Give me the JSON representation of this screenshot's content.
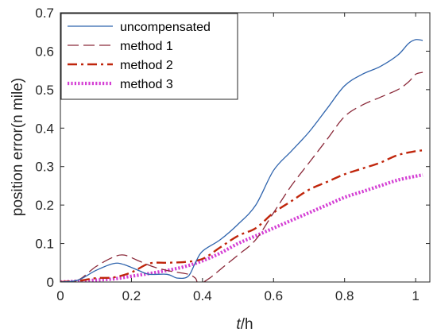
{
  "chart_data": {
    "type": "line",
    "xlabel_italic": "t",
    "xlabel_rest": "/h",
    "ylabel": "position error(n mile)",
    "xlim": [
      0,
      1.04
    ],
    "ylim": [
      0,
      0.7
    ],
    "xticks": [
      0,
      0.2,
      0.4,
      0.6,
      0.8,
      1
    ],
    "xtick_labels": [
      "0",
      "0.2",
      "0.4",
      "0.6",
      "0.8",
      "1"
    ],
    "yticks": [
      0,
      0.1,
      0.2,
      0.3,
      0.4,
      0.5,
      0.6,
      0.7
    ],
    "ytick_labels": [
      "0",
      "0.1",
      "0.2",
      "0.3",
      "0.4",
      "0.5",
      "0.6",
      "0.7"
    ],
    "grid": false,
    "legend_position": "top-left",
    "series": [
      {
        "name": "uncompensated",
        "color": "#2f64ad",
        "style": "solid",
        "x": [
          0,
          0.05,
          0.1,
          0.15,
          0.18,
          0.22,
          0.25,
          0.3,
          0.33,
          0.36,
          0.38,
          0.4,
          0.45,
          0.5,
          0.55,
          0.6,
          0.65,
          0.7,
          0.75,
          0.8,
          0.85,
          0.9,
          0.95,
          0.98,
          1.0,
          1.02
        ],
        "y": [
          0,
          0.005,
          0.03,
          0.048,
          0.045,
          0.03,
          0.02,
          0.02,
          0.01,
          0.015,
          0.05,
          0.08,
          0.11,
          0.15,
          0.2,
          0.29,
          0.34,
          0.39,
          0.45,
          0.51,
          0.54,
          0.56,
          0.59,
          0.62,
          0.63,
          0.628
        ]
      },
      {
        "name": "method 1",
        "color": "#8b2a3a",
        "style": "dashed",
        "x": [
          0,
          0.05,
          0.1,
          0.15,
          0.18,
          0.22,
          0.26,
          0.3,
          0.33,
          0.36,
          0.38,
          0.39,
          0.42,
          0.46,
          0.5,
          0.55,
          0.6,
          0.65,
          0.7,
          0.75,
          0.8,
          0.85,
          0.9,
          0.95,
          0.98,
          1.0,
          1.02
        ],
        "y": [
          0,
          0.005,
          0.04,
          0.065,
          0.07,
          0.055,
          0.04,
          0.03,
          0.025,
          0.02,
          0.01,
          -0.005,
          0.01,
          0.04,
          0.07,
          0.11,
          0.18,
          0.25,
          0.31,
          0.37,
          0.43,
          0.46,
          0.48,
          0.5,
          0.52,
          0.54,
          0.545
        ]
      },
      {
        "name": "method 2",
        "color": "#c0260c",
        "style": "dashdot",
        "x": [
          0,
          0.05,
          0.1,
          0.15,
          0.2,
          0.25,
          0.3,
          0.35,
          0.4,
          0.45,
          0.5,
          0.55,
          0.6,
          0.65,
          0.7,
          0.75,
          0.8,
          0.85,
          0.9,
          0.95,
          1.0,
          1.02
        ],
        "y": [
          0,
          0.003,
          0.01,
          0.012,
          0.025,
          0.048,
          0.05,
          0.052,
          0.06,
          0.09,
          0.12,
          0.14,
          0.18,
          0.21,
          0.24,
          0.26,
          0.28,
          0.295,
          0.31,
          0.33,
          0.34,
          0.342
        ]
      },
      {
        "name": "method 3",
        "color": "#d43fd4",
        "style": "dotted",
        "x": [
          0,
          0.05,
          0.1,
          0.15,
          0.2,
          0.25,
          0.3,
          0.35,
          0.4,
          0.45,
          0.5,
          0.55,
          0.6,
          0.65,
          0.7,
          0.75,
          0.8,
          0.85,
          0.9,
          0.95,
          1.0,
          1.02
        ],
        "y": [
          0,
          0.002,
          0.005,
          0.008,
          0.015,
          0.022,
          0.03,
          0.04,
          0.055,
          0.075,
          0.1,
          0.12,
          0.14,
          0.16,
          0.18,
          0.2,
          0.22,
          0.235,
          0.25,
          0.265,
          0.275,
          0.278
        ]
      }
    ]
  }
}
